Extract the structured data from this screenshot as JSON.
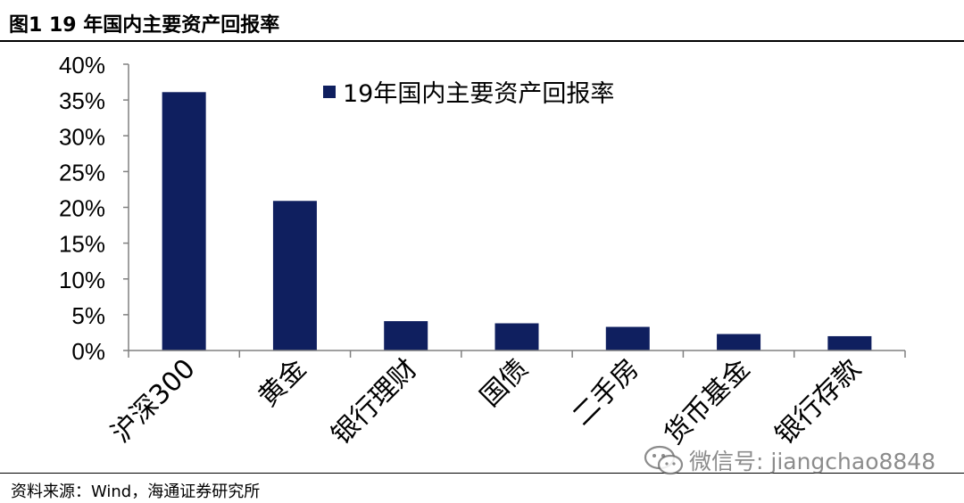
{
  "header": {
    "title": "图1   19 年国内主要资产回报率"
  },
  "chart_data": {
    "type": "bar",
    "categories": [
      "沪深300",
      "黄金",
      "银行理财",
      "国债",
      "二手房",
      "货币基金",
      "银行存款"
    ],
    "series": [
      {
        "name": "19年国内主要资产回报率",
        "values": [
          36.1,
          20.9,
          4.1,
          3.8,
          3.3,
          2.3,
          2.0
        ]
      }
    ],
    "yticks": [
      "0%",
      "5%",
      "10%",
      "15%",
      "20%",
      "25%",
      "30%",
      "35%",
      "40%"
    ],
    "ylim": [
      0,
      40
    ],
    "xlabel": "",
    "ylabel": "",
    "legend_position": "top",
    "grid": false,
    "colors": {
      "bar": "#0f1f5f",
      "axis": "#808080"
    }
  },
  "footer": {
    "source": "资料来源：Wind，海通证券研究所"
  },
  "watermark": {
    "text": "微信号: jiangchao8848",
    "icon": "wechat-icon"
  }
}
